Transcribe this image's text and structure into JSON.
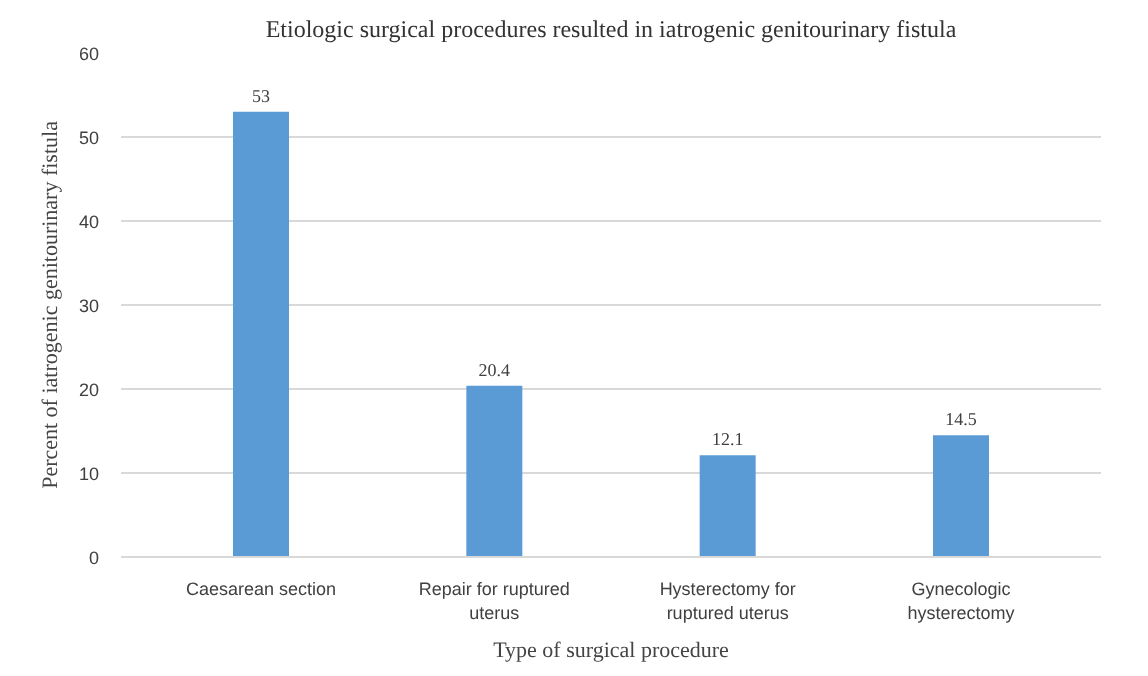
{
  "chart_data": {
    "type": "bar",
    "title": "Etiologic surgical procedures resulted in iatrogenic genitourinary fistula",
    "xlabel": "Type of surgical procedure",
    "ylabel": "Percent of iatrogenic genitourinary fistula",
    "categories": [
      "Caesarean section",
      "Repair for ruptured uterus",
      "Hysterectomy for ruptured uterus",
      "Gynecologic hysterectomy"
    ],
    "values": [
      53,
      20.4,
      12.1,
      14.5
    ],
    "color": "#5b9bd5",
    "ylim": [
      0,
      60
    ],
    "yticks": [
      0,
      10,
      20,
      30,
      40,
      50,
      60
    ],
    "grid": "y",
    "data_labels": true
  }
}
